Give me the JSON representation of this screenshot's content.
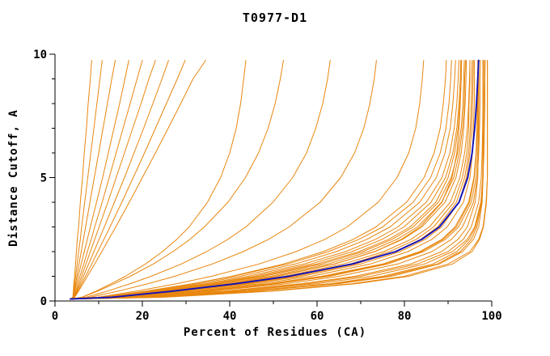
{
  "colors": {
    "model": "#e8860d",
    "highlight": "#1111bb",
    "axis": "#000000",
    "background": "#ffffff"
  },
  "chart_data": {
    "type": "line",
    "title": "T0977-D1",
    "xlabel": "Percent of Residues (CA)",
    "ylabel": "Distance Cutoff, A",
    "xlim": [
      0,
      100
    ],
    "ylim": [
      0,
      10
    ],
    "grid": false,
    "legend": null,
    "x_ticks": [
      0,
      20,
      40,
      60,
      80,
      100
    ],
    "x_minor_ticks": [
      10,
      30,
      50,
      70,
      90
    ],
    "y_ticks": [
      0,
      5,
      10
    ],
    "y_minor_ticks": [
      1,
      2,
      3,
      4,
      6,
      7,
      8,
      9
    ],
    "origin": [
      3.5,
      0.08
    ],
    "y_grid": [
      0.15,
      0.4,
      0.7,
      1.0,
      1.5,
      2.0,
      2.5,
      3.0,
      4.0,
      5.0,
      6.0,
      7.0,
      8.0,
      9.0,
      9.75
    ],
    "series": [
      {
        "name": "model-01",
        "color": "orange",
        "x": [
          4.1,
          4.2,
          4.3,
          4.5,
          4.7,
          4.9,
          5.1,
          5.4,
          5.8,
          6.3,
          6.7,
          7.2,
          7.6,
          8.1,
          8.4
        ]
      },
      {
        "name": "model-02",
        "color": "orange",
        "x": [
          4.1,
          4.3,
          4.5,
          4.7,
          5.1,
          5.4,
          5.8,
          6.1,
          6.8,
          7.5,
          8.2,
          8.9,
          9.6,
          10.3,
          10.8
        ]
      },
      {
        "name": "model-03",
        "color": "orange",
        "x": [
          4.2,
          4.4,
          4.7,
          5.0,
          5.5,
          6.0,
          6.5,
          7.0,
          8.0,
          9.0,
          10.0,
          11.0,
          12.0,
          13.0,
          13.8
        ]
      },
      {
        "name": "model-04",
        "color": "orange",
        "x": [
          4.2,
          4.5,
          4.9,
          5.3,
          6.0,
          6.7,
          7.4,
          8.1,
          9.5,
          10.9,
          12.2,
          13.5,
          14.8,
          16.0,
          16.9
        ]
      },
      {
        "name": "model-05",
        "color": "orange",
        "x": [
          4.3,
          4.7,
          5.2,
          5.7,
          6.6,
          7.4,
          8.3,
          9.1,
          10.8,
          12.4,
          14.0,
          15.6,
          17.2,
          18.8,
          20.0
        ]
      },
      {
        "name": "model-06",
        "color": "orange",
        "x": [
          4.3,
          4.9,
          5.5,
          6.1,
          7.1,
          8.1,
          9.1,
          10.1,
          12.1,
          14.0,
          15.9,
          17.8,
          19.7,
          21.5,
          23.0
        ]
      },
      {
        "name": "model-07",
        "color": "orange",
        "x": [
          4.4,
          5.0,
          5.8,
          6.5,
          7.7,
          8.9,
          10.1,
          11.3,
          13.6,
          15.9,
          18.1,
          20.3,
          22.4,
          24.5,
          26.0
        ]
      },
      {
        "name": "model-08",
        "color": "orange",
        "x": [
          4.4,
          5.2,
          6.1,
          7.0,
          8.4,
          9.8,
          11.2,
          12.6,
          15.3,
          17.9,
          20.5,
          23.0,
          25.5,
          28.0,
          29.8
        ]
      },
      {
        "name": "model-09",
        "color": "orange",
        "x": [
          4.5,
          5.4,
          6.4,
          7.4,
          9.1,
          10.7,
          12.3,
          13.9,
          17.0,
          20.0,
          23.0,
          25.9,
          28.8,
          31.6,
          34.5
        ]
      },
      {
        "name": "model-10",
        "color": "orange",
        "x": [
          6.1,
          9.4,
          12.9,
          16.1,
          20.7,
          24.6,
          27.9,
          30.7,
          34.9,
          37.9,
          40.0,
          41.5,
          42.5,
          43.2,
          43.7
        ]
      },
      {
        "name": "model-11",
        "color": "orange",
        "x": [
          6.2,
          9.8,
          13.6,
          17.2,
          22.5,
          27.0,
          30.9,
          34.2,
          39.6,
          43.6,
          46.6,
          48.8,
          50.4,
          51.6,
          52.3
        ]
      },
      {
        "name": "model-12",
        "color": "orange",
        "x": [
          7.1,
          12.0,
          17.2,
          22.0,
          28.9,
          34.7,
          39.6,
          43.7,
          49.9,
          54.4,
          57.6,
          59.7,
          61.3,
          62.4,
          63.0
        ]
      },
      {
        "name": "model-13",
        "color": "orange",
        "x": [
          8.1,
          14.5,
          21.3,
          27.4,
          36.0,
          43.1,
          48.9,
          53.6,
          60.7,
          65.4,
          68.6,
          70.7,
          72.1,
          73.1,
          73.6
        ]
      },
      {
        "name": "model-14",
        "color": "orange",
        "x": [
          9.8,
          18.7,
          27.9,
          35.8,
          46.7,
          55.2,
          61.8,
          66.9,
          74.0,
          78.3,
          81.0,
          82.6,
          83.5,
          84.1,
          84.4
        ]
      },
      {
        "name": "model-15",
        "color": "orange",
        "x": [
          10.8,
          20.9,
          31.5,
          40.4,
          52.3,
          61.4,
          68.3,
          73.5,
          80.5,
          84.5,
          86.8,
          88.2,
          88.9,
          89.4,
          89.6
        ]
      },
      {
        "name": "model-16",
        "color": "orange",
        "x": [
          24,
          49,
          68,
          80,
          90,
          95,
          97,
          98,
          98.7,
          99,
          99,
          99,
          99,
          99,
          99
        ]
      },
      {
        "name": "model-17",
        "color": "orange",
        "x": [
          23,
          46,
          65,
          77,
          88,
          93.3,
          95.8,
          97,
          97.8,
          98,
          98,
          98,
          98,
          98,
          98
        ]
      },
      {
        "name": "model-18",
        "color": "orange",
        "x": [
          21,
          42,
          60,
          72.4,
          84.6,
          91,
          94.4,
          96.1,
          97.5,
          97.9,
          98,
          98,
          98,
          98,
          98
        ]
      },
      {
        "name": "model-19",
        "color": "orange",
        "x": [
          18.5,
          38.8,
          56.4,
          68.7,
          81.5,
          88.5,
          92.3,
          94.4,
          96.2,
          96.8,
          96.9,
          97,
          97,
          97,
          97
        ]
      },
      {
        "name": "model-20",
        "color": "orange",
        "x": [
          17,
          34.7,
          50.8,
          62.8,
          76.2,
          84.4,
          89.4,
          92.4,
          95.3,
          96.4,
          96.8,
          96.9,
          97,
          97,
          97
        ]
      },
      {
        "name": "model-21",
        "color": "orange",
        "x": [
          15.7,
          31.9,
          47,
          58.6,
          72.2,
          80.8,
          86.3,
          89.8,
          93.5,
          95,
          95.6,
          95.8,
          96,
          96,
          96
        ]
      },
      {
        "name": "model-22",
        "color": "orange",
        "x": [
          14.3,
          28.9,
          43,
          54.1,
          67.6,
          76.6,
          82.7,
          86.7,
          91.3,
          93.3,
          94.3,
          94.7,
          94.8,
          95,
          95
        ]
      },
      {
        "name": "model-23",
        "color": "orange",
        "x": [
          13,
          26,
          38.8,
          49.3,
          62.5,
          71.8,
          78.3,
          83,
          88.5,
          91.3,
          92.6,
          93.3,
          93.7,
          93.8,
          94
        ]
      },
      {
        "name": "model-24",
        "color": "orange",
        "x": [
          13.5,
          27.1,
          40.3,
          51,
          64.1,
          73.2,
          79.3,
          83.6,
          88.6,
          90.9,
          92,
          92.5,
          92.8,
          93,
          93
        ]
      },
      {
        "name": "model-25",
        "color": "orange",
        "x": [
          25,
          50,
          69,
          81,
          91,
          95.5,
          97.2,
          98.1,
          98.8,
          99,
          99,
          99,
          99,
          99,
          99
        ]
      },
      {
        "name": "model-26",
        "color": "orange",
        "x": [
          20,
          44,
          63,
          75,
          86.5,
          92,
          94.8,
          96.3,
          97.6,
          98,
          98.2,
          98.3,
          98.4,
          98.4,
          98.5
        ]
      },
      {
        "name": "model-27",
        "color": "orange",
        "x": [
          19,
          40,
          58,
          70,
          83,
          90,
          93.5,
          95.3,
          97,
          97.6,
          97.8,
          97.9,
          98,
          98,
          98
        ]
      },
      {
        "name": "model-28",
        "color": "orange",
        "x": [
          16,
          33,
          49,
          61,
          75,
          83.5,
          88.6,
          91.6,
          94.7,
          95.9,
          96.4,
          96.6,
          96.7,
          96.8,
          96.8
        ]
      },
      {
        "name": "model-29",
        "color": "orange",
        "x": [
          15,
          30,
          45,
          56.5,
          70,
          79,
          84.8,
          88.5,
          92.5,
          94.2,
          95,
          95.4,
          95.6,
          95.7,
          95.8
        ]
      },
      {
        "name": "model-30",
        "color": "orange",
        "x": [
          14,
          28,
          41.5,
          52.5,
          66,
          75.3,
          81.5,
          85.7,
          90.5,
          92.7,
          93.8,
          94.4,
          94.7,
          94.9,
          95
        ]
      },
      {
        "name": "model-31",
        "color": "orange",
        "x": [
          12.5,
          25,
          37.5,
          47.8,
          61,
          70.5,
          77.2,
          82,
          87.8,
          90.7,
          92.2,
          93,
          93.4,
          93.6,
          93.7
        ]
      },
      {
        "name": "model-32",
        "color": "orange",
        "x": [
          12,
          23.8,
          35.7,
          45.6,
          58.6,
          68,
          74.9,
          79.9,
          86.1,
          89.4,
          91.1,
          92,
          92.5,
          92.8,
          92.9
        ]
      },
      {
        "name": "model-33",
        "color": "orange",
        "x": [
          22,
          45,
          64,
          76,
          87.5,
          92.8,
          95.3,
          96.6,
          97.7,
          98,
          98.1,
          98.2,
          98.2,
          98.3,
          98.3
        ]
      },
      {
        "name": "model-34",
        "color": "orange",
        "x": [
          17.5,
          36,
          53,
          65,
          78.5,
          86.3,
          90.8,
          93.3,
          95.8,
          96.7,
          97,
          97.2,
          97.3,
          97.3,
          97.4
        ]
      },
      {
        "name": "model-35",
        "color": "orange",
        "x": [
          16.5,
          34,
          50,
          62,
          75.5,
          83.9,
          88.9,
          91.9,
          94.9,
          96,
          96.5,
          96.7,
          96.8,
          96.9,
          96.9
        ]
      },
      {
        "name": "model-36",
        "color": "orange",
        "x": [
          14.5,
          29.5,
          44,
          55.2,
          68.8,
          77.8,
          83.7,
          87.6,
          91.9,
          93.8,
          94.7,
          95.1,
          95.3,
          95.4,
          95.5
        ]
      },
      {
        "name": "model-37",
        "color": "orange",
        "x": [
          13.5,
          27,
          40,
          50.5,
          63.9,
          73.2,
          79.6,
          84,
          89.3,
          91.8,
          93,
          93.6,
          93.9,
          94.1,
          94.2
        ]
      },
      {
        "name": "model-38",
        "color": "orange",
        "x": [
          11.5,
          23,
          34.5,
          44.2,
          57,
          66.5,
          73.4,
          78.5,
          85,
          88.6,
          90.4,
          91.4,
          92,
          92.3,
          92.5
        ]
      },
      {
        "name": "model-39",
        "color": "orange",
        "x": [
          11,
          22,
          33,
          42.4,
          55,
          64.4,
          71.4,
          76.7,
          83.5,
          87.3,
          89.3,
          90.5,
          91.1,
          91.5,
          91.7
        ]
      },
      {
        "name": "model-40",
        "color": "orange",
        "x": [
          10.5,
          21,
          31.7,
          40.8,
          53.2,
          62.6,
          69.6,
          75,
          82,
          86,
          88.2,
          89.5,
          90.2,
          90.6,
          90.8
        ]
      },
      {
        "name": "model-41",
        "color": "orange",
        "x": [
          12,
          24.5,
          36.6,
          46.8,
          60,
          69.6,
          76.4,
          81.3,
          87.2,
          90,
          91.5,
          92.3,
          92.7,
          93,
          93.1
        ]
      },
      {
        "name": "selected-model",
        "color": "blue",
        "x": [
          13,
          27,
          41.5,
          53.5,
          68,
          78,
          84,
          88,
          92.5,
          94.5,
          95.5,
          96.1,
          96.5,
          96.8,
          97
        ]
      }
    ]
  }
}
